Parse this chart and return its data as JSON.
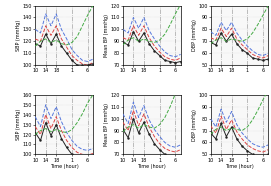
{
  "top_row": {
    "sbp": {
      "ylabel": "SBP (mmHg)",
      "ylim": [
        100,
        150
      ],
      "yticks": [
        100,
        110,
        120,
        130,
        140,
        150
      ],
      "blue": [
        130,
        127,
        143,
        133,
        143,
        130,
        122,
        113,
        108,
        104,
        103,
        105
      ],
      "red": [
        122,
        120,
        133,
        125,
        133,
        122,
        115,
        108,
        104,
        101,
        100,
        102
      ],
      "black": [
        118,
        116,
        126,
        118,
        126,
        116,
        110,
        104,
        100,
        100,
        100,
        101
      ],
      "green": [
        116,
        120,
        122,
        119,
        121,
        118,
        117,
        119,
        124,
        133,
        142,
        150
      ]
    },
    "meanbp": {
      "ylabel": "Mean BP (mmHg)",
      "ylim": [
        70,
        120
      ],
      "yticks": [
        70,
        80,
        90,
        100,
        110,
        120
      ],
      "blue": [
        100,
        97,
        110,
        101,
        110,
        99,
        92,
        86,
        81,
        78,
        77,
        79
      ],
      "red": [
        93,
        91,
        103,
        95,
        103,
        93,
        86,
        81,
        77,
        75,
        74,
        76
      ],
      "black": [
        89,
        87,
        98,
        90,
        97,
        88,
        82,
        78,
        74,
        73,
        72,
        73
      ],
      "green": [
        87,
        91,
        93,
        90,
        92,
        90,
        89,
        91,
        96,
        104,
        113,
        121
      ]
    },
    "dbp": {
      "ylabel": "DBP (mmHg)",
      "ylim": [
        50,
        100
      ],
      "yticks": [
        50,
        60,
        70,
        80,
        90,
        100
      ],
      "blue": [
        78,
        75,
        86,
        79,
        86,
        77,
        71,
        66,
        62,
        59,
        58,
        60
      ],
      "red": [
        73,
        71,
        81,
        74,
        81,
        72,
        67,
        63,
        59,
        57,
        56,
        58
      ],
      "black": [
        69,
        67,
        77,
        70,
        76,
        68,
        63,
        60,
        56,
        55,
        54,
        55
      ],
      "green": [
        68,
        71,
        73,
        70,
        72,
        71,
        70,
        72,
        77,
        84,
        92,
        100
      ]
    }
  },
  "bot_row": {
    "sbp": {
      "ylabel": "SBP (mmHg)",
      "ylim": [
        100,
        160
      ],
      "yticks": [
        100,
        110,
        120,
        130,
        140,
        150,
        160
      ],
      "blue": [
        138,
        128,
        150,
        136,
        148,
        133,
        122,
        114,
        108,
        105,
        104,
        106
      ],
      "red": [
        128,
        120,
        140,
        126,
        138,
        124,
        114,
        107,
        102,
        100,
        99,
        101
      ],
      "black": [
        122,
        114,
        132,
        119,
        130,
        116,
        107,
        100,
        96,
        94,
        93,
        95
      ],
      "green": [
        120,
        124,
        126,
        123,
        125,
        123,
        122,
        125,
        132,
        141,
        152,
        160
      ]
    },
    "meanbp": {
      "ylabel": "Mean BP (mmHg)",
      "ylim": [
        70,
        120
      ],
      "yticks": [
        70,
        80,
        90,
        100,
        110,
        120
      ],
      "blue": [
        104,
        96,
        114,
        101,
        111,
        99,
        91,
        85,
        80,
        77,
        76,
        78
      ],
      "red": [
        97,
        90,
        107,
        94,
        104,
        93,
        85,
        79,
        75,
        73,
        72,
        74
      ],
      "black": [
        91,
        84,
        100,
        88,
        97,
        87,
        79,
        74,
        70,
        68,
        67,
        69
      ],
      "green": [
        89,
        93,
        95,
        92,
        95,
        93,
        92,
        95,
        101,
        110,
        121,
        129
      ]
    },
    "dbp": {
      "ylabel": "DBP (mmHg)",
      "ylim": [
        50,
        100
      ],
      "yticks": [
        50,
        60,
        70,
        80,
        90,
        100
      ],
      "blue": [
        80,
        73,
        88,
        77,
        86,
        75,
        68,
        63,
        59,
        57,
        56,
        58
      ],
      "red": [
        74,
        68,
        82,
        71,
        79,
        69,
        63,
        58,
        55,
        53,
        52,
        54
      ],
      "black": [
        68,
        63,
        76,
        65,
        73,
        63,
        57,
        53,
        50,
        49,
        48,
        50
      ],
      "green": [
        67,
        71,
        73,
        70,
        72,
        71,
        70,
        73,
        79,
        87,
        96,
        104
      ]
    }
  },
  "xlabel": "Time (hour)",
  "xticklabels": [
    "10",
    "14",
    "18",
    "1",
    "6"
  ],
  "colors": {
    "blue": "#5577dd",
    "red": "#dd4444",
    "black": "#222222",
    "green": "#44aa44"
  },
  "vline_color": "#999999"
}
